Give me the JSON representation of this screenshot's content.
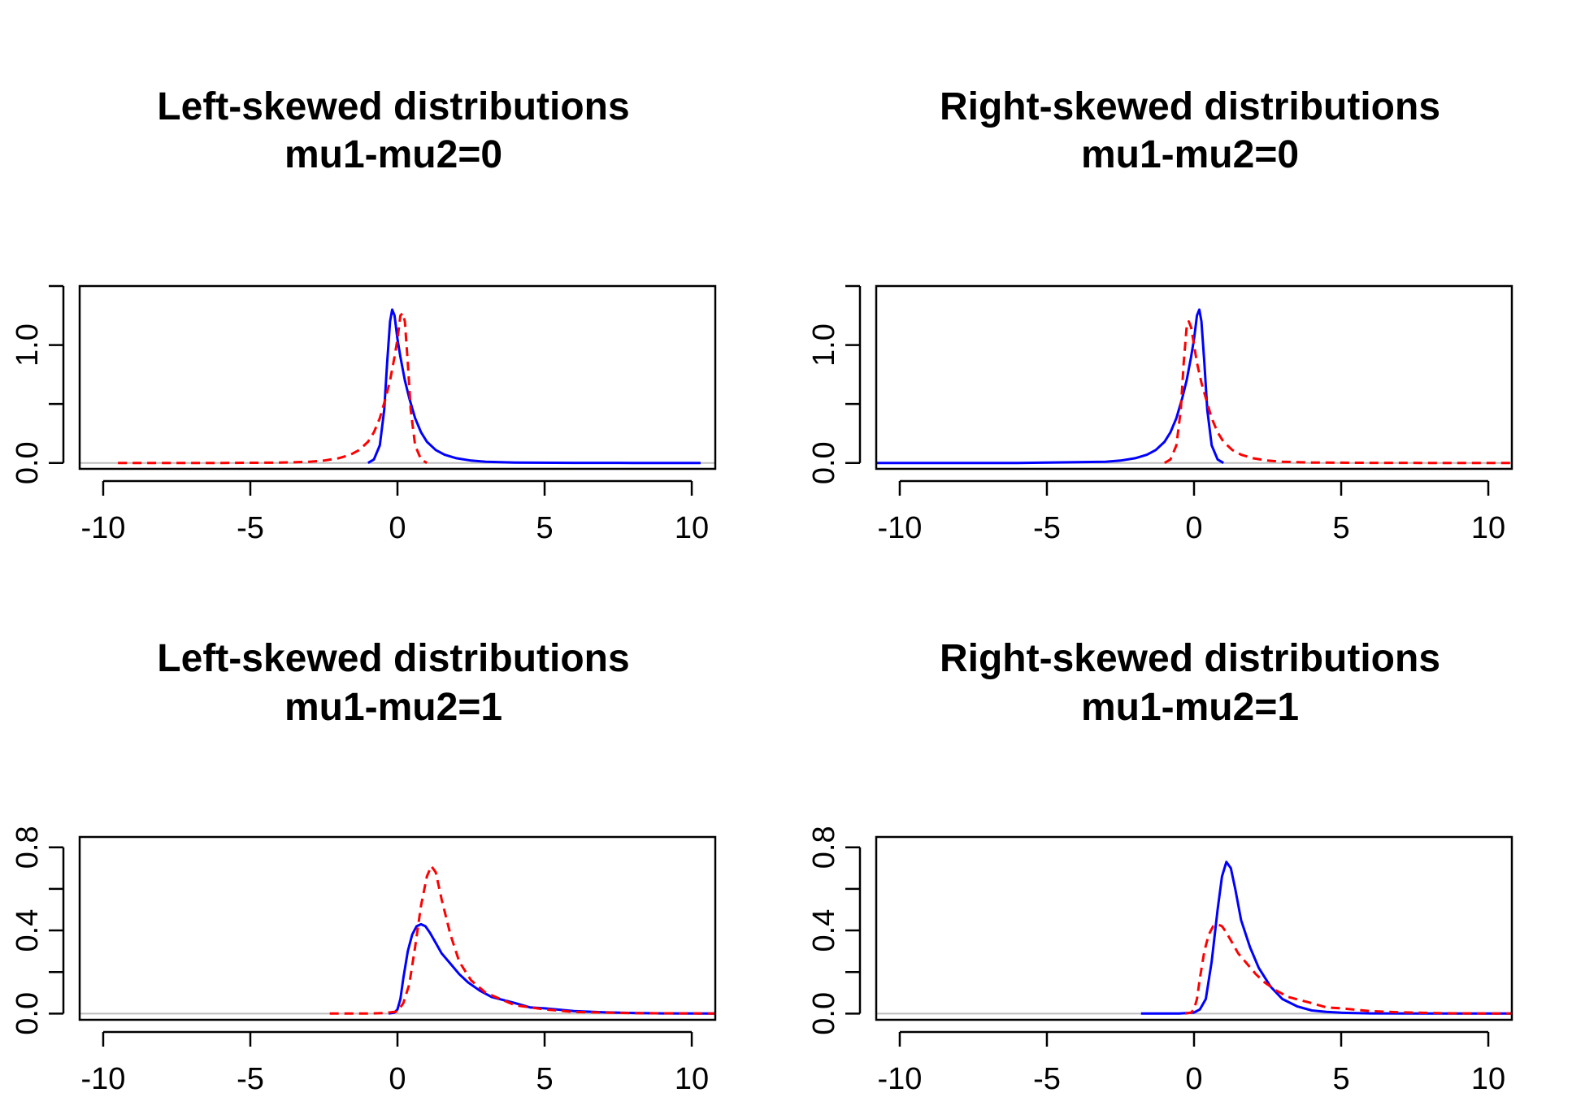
{
  "chart_data": [
    {
      "type": "line",
      "title": "Left-skewed distributions",
      "subtitle": "mu1-mu2=0",
      "xlim": [
        -10.8,
        10.8
      ],
      "ylim": [
        -0.05,
        1.5
      ],
      "xticks": [
        -10,
        -5,
        0,
        5,
        10
      ],
      "xtick_labels": [
        "-10",
        "-5",
        "0",
        "5",
        "10"
      ],
      "yticks": [
        0.0,
        0.5,
        1.0,
        1.5
      ],
      "ytick_labels": [
        "0.0",
        "",
        "1.0",
        ""
      ],
      "grid": false,
      "series": [
        {
          "color": "#0000ff",
          "dash": "solid",
          "x": [
            -1.0,
            -0.8,
            -0.6,
            -0.45,
            -0.35,
            -0.25,
            -0.18,
            -0.1,
            0.0,
            0.1,
            0.25,
            0.4,
            0.6,
            0.8,
            1.0,
            1.3,
            1.6,
            2.0,
            2.5,
            3.0,
            4.0,
            6.0,
            8.0,
            10.3
          ],
          "y": [
            0.0,
            0.03,
            0.15,
            0.45,
            0.85,
            1.2,
            1.3,
            1.25,
            1.05,
            0.9,
            0.7,
            0.55,
            0.38,
            0.26,
            0.18,
            0.11,
            0.07,
            0.04,
            0.02,
            0.01,
            0.004,
            0.001,
            0.0,
            0.0
          ]
        },
        {
          "color": "#ff0000",
          "dash": "dashed",
          "x": [
            -9.5,
            -6.0,
            -4.0,
            -3.0,
            -2.5,
            -2.0,
            -1.6,
            -1.3,
            -1.0,
            -0.8,
            -0.6,
            -0.4,
            -0.25,
            -0.1,
            0.0,
            0.1,
            0.18,
            0.25,
            0.35,
            0.45,
            0.6,
            0.8,
            1.0
          ],
          "y": [
            0.0,
            0.0,
            0.003,
            0.01,
            0.02,
            0.04,
            0.07,
            0.11,
            0.18,
            0.26,
            0.38,
            0.55,
            0.7,
            0.9,
            1.05,
            1.25,
            1.27,
            1.2,
            0.85,
            0.45,
            0.15,
            0.03,
            0.0
          ]
        }
      ]
    },
    {
      "type": "line",
      "title": "Right-skewed distributions",
      "subtitle": "mu1-mu2=0",
      "xlim": [
        -10.8,
        10.8
      ],
      "ylim": [
        -0.05,
        1.5
      ],
      "xticks": [
        -10,
        -5,
        0,
        5,
        10
      ],
      "xtick_labels": [
        "-10",
        "-5",
        "0",
        "5",
        "10"
      ],
      "yticks": [
        0.0,
        0.5,
        1.0,
        1.5
      ],
      "ytick_labels": [
        "0.0",
        "",
        "1.0",
        ""
      ],
      "grid": false,
      "series": [
        {
          "color": "#0000ff",
          "dash": "solid",
          "x": [
            -10.8,
            -6.0,
            -3.0,
            -2.5,
            -2.0,
            -1.6,
            -1.3,
            -1.0,
            -0.8,
            -0.6,
            -0.4,
            -0.25,
            -0.1,
            0.0,
            0.1,
            0.18,
            0.25,
            0.35,
            0.45,
            0.6,
            0.8,
            1.0
          ],
          "y": [
            0.0,
            0.0,
            0.01,
            0.02,
            0.04,
            0.07,
            0.11,
            0.18,
            0.26,
            0.38,
            0.55,
            0.7,
            0.9,
            1.05,
            1.25,
            1.3,
            1.2,
            0.85,
            0.45,
            0.15,
            0.03,
            0.0
          ]
        },
        {
          "color": "#ff0000",
          "dash": "dashed",
          "x": [
            -1.0,
            -0.8,
            -0.6,
            -0.45,
            -0.35,
            -0.25,
            -0.18,
            -0.1,
            0.0,
            0.1,
            0.25,
            0.4,
            0.6,
            0.8,
            1.0,
            1.3,
            1.6,
            2.0,
            2.5,
            3.0,
            4.0,
            6.0,
            8.0,
            10.8
          ],
          "y": [
            0.0,
            0.03,
            0.15,
            0.45,
            0.85,
            1.15,
            1.2,
            1.15,
            1.0,
            0.85,
            0.68,
            0.55,
            0.38,
            0.26,
            0.18,
            0.11,
            0.07,
            0.04,
            0.02,
            0.01,
            0.004,
            0.001,
            0.0,
            0.0
          ]
        }
      ]
    },
    {
      "type": "line",
      "title": "Left-skewed distributions",
      "subtitle": "mu1-mu2=1",
      "xlim": [
        -10.8,
        10.8
      ],
      "ylim": [
        -0.03,
        0.85
      ],
      "xticks": [
        -10,
        -5,
        0,
        5,
        10
      ],
      "xtick_labels": [
        "-10",
        "-5",
        "0",
        "5",
        "10"
      ],
      "yticks": [
        0.0,
        0.2,
        0.4,
        0.6,
        0.8
      ],
      "ytick_labels": [
        "0.0",
        "",
        "0.4",
        "",
        "0.8"
      ],
      "grid": false,
      "series": [
        {
          "color": "#0000ff",
          "dash": "solid",
          "x": [
            -0.3,
            -0.1,
            0.0,
            0.1,
            0.2,
            0.35,
            0.5,
            0.65,
            0.8,
            0.95,
            1.1,
            1.3,
            1.5,
            1.8,
            2.1,
            2.4,
            2.8,
            3.2,
            3.6,
            4.0,
            4.5,
            5.0,
            6.0,
            7.0,
            8.0,
            9.0,
            10.8
          ],
          "y": [
            0.0,
            0.005,
            0.02,
            0.07,
            0.17,
            0.3,
            0.38,
            0.42,
            0.43,
            0.42,
            0.39,
            0.34,
            0.29,
            0.24,
            0.19,
            0.15,
            0.11,
            0.08,
            0.065,
            0.05,
            0.03,
            0.025,
            0.012,
            0.006,
            0.003,
            0.001,
            0.0
          ]
        },
        {
          "color": "#ff0000",
          "dash": "dashed",
          "x": [
            -2.3,
            -1.0,
            -0.5,
            0.0,
            0.2,
            0.4,
            0.6,
            0.8,
            1.0,
            1.15,
            1.3,
            1.5,
            1.8,
            2.1,
            2.5,
            3.0,
            3.5,
            4.0,
            5.0,
            6.0,
            8.0,
            10.8
          ],
          "y": [
            0.0,
            0.0,
            0.002,
            0.01,
            0.05,
            0.14,
            0.32,
            0.52,
            0.66,
            0.71,
            0.68,
            0.55,
            0.38,
            0.25,
            0.16,
            0.1,
            0.07,
            0.04,
            0.02,
            0.008,
            0.002,
            0.0
          ]
        }
      ]
    },
    {
      "type": "line",
      "title": "Right-skewed distributions",
      "subtitle": "mu1-mu2=1",
      "xlim": [
        -10.8,
        10.8
      ],
      "ylim": [
        -0.03,
        0.85
      ],
      "xticks": [
        -10,
        -5,
        0,
        5,
        10
      ],
      "xtick_labels": [
        "-10",
        "-5",
        "0",
        "5",
        "10"
      ],
      "yticks": [
        0.0,
        0.2,
        0.4,
        0.6,
        0.8
      ],
      "ytick_labels": [
        "0.0",
        "",
        "0.4",
        "",
        "0.8"
      ],
      "grid": false,
      "series": [
        {
          "color": "#0000ff",
          "dash": "solid",
          "x": [
            -1.8,
            -0.5,
            0.0,
            0.2,
            0.4,
            0.6,
            0.8,
            0.95,
            1.1,
            1.25,
            1.4,
            1.6,
            1.9,
            2.2,
            2.6,
            3.0,
            3.5,
            4.0,
            4.5,
            5.0,
            6.0,
            8.0,
            10.8
          ],
          "y": [
            0.0,
            0.0,
            0.005,
            0.02,
            0.07,
            0.25,
            0.5,
            0.66,
            0.73,
            0.7,
            0.6,
            0.45,
            0.32,
            0.22,
            0.13,
            0.07,
            0.035,
            0.015,
            0.008,
            0.004,
            0.001,
            0.0,
            0.0
          ]
        },
        {
          "color": "#ff0000",
          "dash": "dashed",
          "x": [
            -0.3,
            -0.1,
            0.0,
            0.1,
            0.2,
            0.35,
            0.5,
            0.65,
            0.8,
            0.95,
            1.1,
            1.3,
            1.5,
            1.8,
            2.1,
            2.4,
            2.8,
            3.2,
            3.6,
            4.0,
            4.5,
            5.0,
            6.0,
            7.0,
            8.0,
            9.0,
            10.8
          ],
          "y": [
            0.0,
            0.005,
            0.02,
            0.07,
            0.17,
            0.3,
            0.38,
            0.42,
            0.43,
            0.42,
            0.39,
            0.34,
            0.29,
            0.24,
            0.19,
            0.15,
            0.11,
            0.08,
            0.065,
            0.05,
            0.03,
            0.025,
            0.012,
            0.006,
            0.003,
            0.001,
            0.0
          ]
        }
      ]
    }
  ]
}
